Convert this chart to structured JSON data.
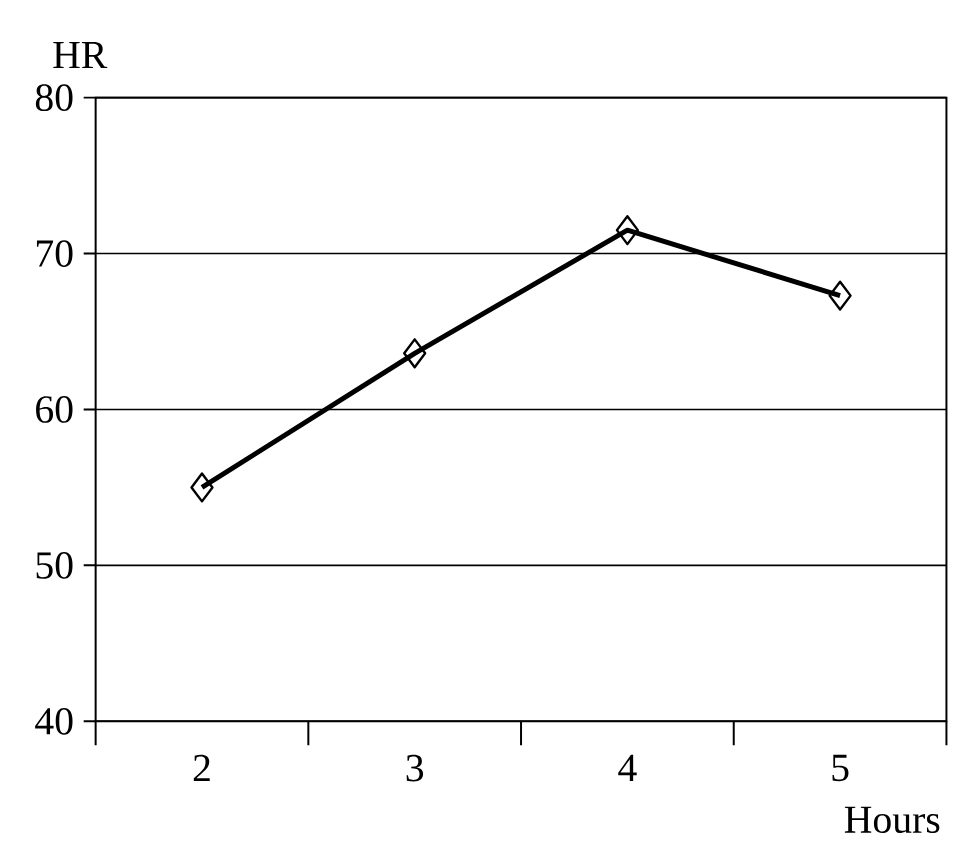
{
  "chart_data": {
    "type": "line",
    "xlabel": "Hours",
    "ylabel": "HR",
    "categories": [
      "2",
      "3",
      "4",
      "5"
    ],
    "series": [
      {
        "color": "#000000",
        "values": [
          55.0,
          63.6,
          71.5,
          67.3
        ]
      }
    ],
    "ylim": [
      40,
      80
    ],
    "yticks": [
      40,
      50,
      60,
      70,
      80
    ],
    "grid": "y",
    "marker": "diamond",
    "line_style": "solid"
  }
}
